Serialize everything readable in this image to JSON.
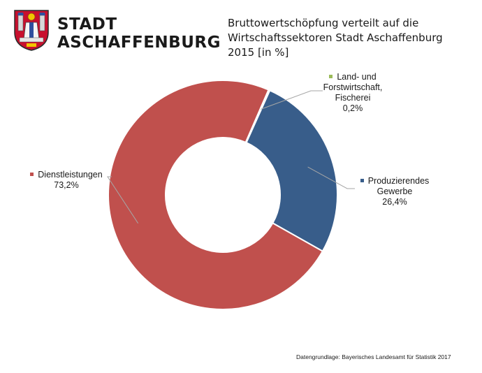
{
  "header": {
    "logo_line1": "STADT",
    "logo_line2": "ASCHAFFENBURG"
  },
  "chart_data": {
    "type": "pie",
    "variant": "donut",
    "title_lines": [
      "Bruttowertschöpfung verteilt auf die",
      "Wirtschaftssektoren Stadt Aschaffenburg",
      "2015 [in %]"
    ],
    "slices": [
      {
        "name_lines": [
          "Land- und",
          "Forstwirtschaft,",
          "Fischerei"
        ],
        "label": "0,2%",
        "value": 0.2,
        "color": "#9BBB59"
      },
      {
        "name_lines": [
          "Produzierendes",
          "Gewerbe"
        ],
        "label": "26,4%",
        "value": 26.4,
        "color": "#385D8A"
      },
      {
        "name_lines": [
          "Dienstleistungen"
        ],
        "label": "73,2%",
        "value": 73.2,
        "color": "#C0504D"
      }
    ],
    "legend": "none (labels with leader lines)"
  },
  "footer": {
    "source": "Datengrundlage: Bayerisches Landesamt für Statistik 2017"
  }
}
